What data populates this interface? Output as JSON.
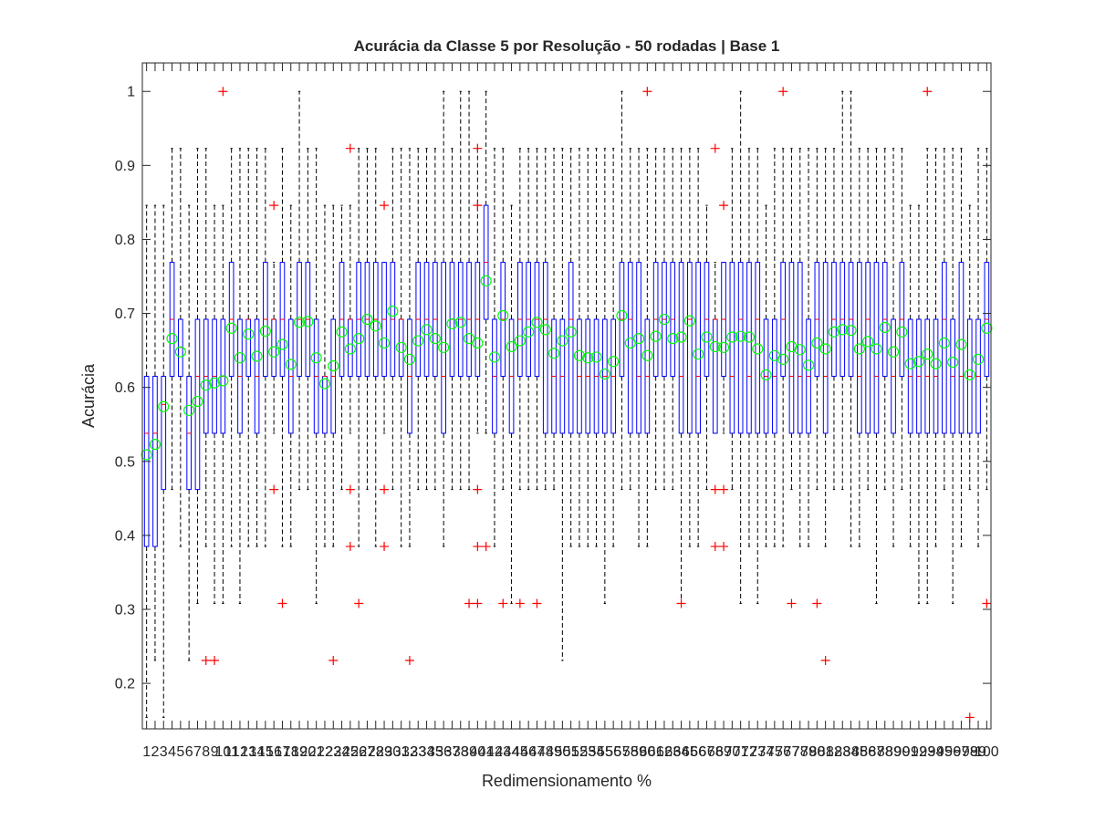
{
  "chart_data": {
    "type": "box",
    "title": "Acurácia da Classe 5 por Resolução - 50 rodadas | Base 1",
    "xlabel": "Redimensionamento %",
    "ylabel": "Acurácia",
    "ylim": [
      0.1385,
      1.0385
    ],
    "yticks": [
      0.2,
      0.3,
      0.4,
      0.5,
      0.6,
      0.7,
      0.8,
      0.9,
      1
    ],
    "categories": [
      "1",
      "2",
      "3",
      "4",
      "5",
      "6",
      "7",
      "8",
      "9",
      "10",
      "11",
      "12",
      "13",
      "14",
      "15",
      "16",
      "17",
      "18",
      "19",
      "20",
      "21",
      "22",
      "23",
      "24",
      "25",
      "26",
      "27",
      "28",
      "29",
      "30",
      "31",
      "32",
      "33",
      "34",
      "35",
      "36",
      "37",
      "38",
      "39",
      "40",
      "41",
      "42",
      "43",
      "44",
      "45",
      "46",
      "47",
      "48",
      "49",
      "50",
      "51",
      "52",
      "53",
      "54",
      "55",
      "56",
      "57",
      "58",
      "59",
      "60",
      "61",
      "62",
      "63",
      "64",
      "65",
      "66",
      "67",
      "68",
      "69",
      "70",
      "71",
      "72",
      "73",
      "74",
      "75",
      "76",
      "77",
      "78",
      "79",
      "80",
      "81",
      "82",
      "83",
      "84",
      "85",
      "86",
      "87",
      "88",
      "89",
      "90",
      "91",
      "92",
      "93",
      "94",
      "95",
      "96",
      "97",
      "98",
      "99",
      "100"
    ],
    "colors": {
      "box": "#0000ff",
      "median": "#ff0000",
      "whisker": "#000000",
      "outlier": "#ff0000",
      "mean": "#00ff00"
    },
    "series": [
      {
        "q1": 0.385,
        "median": 0.538,
        "q3": 0.615,
        "wlo": 0.154,
        "whi": 0.846,
        "mean": 0.509,
        "outliers": []
      },
      {
        "q1": 0.385,
        "median": 0.538,
        "q3": 0.615,
        "wlo": 0.231,
        "whi": 0.846,
        "mean": 0.523,
        "outliers": []
      },
      {
        "q1": 0.462,
        "median": 0.577,
        "q3": 0.615,
        "wlo": 0.154,
        "whi": 0.846,
        "mean": 0.574,
        "outliers": []
      },
      {
        "q1": 0.615,
        "median": 0.692,
        "q3": 0.769,
        "wlo": 0.462,
        "whi": 0.923,
        "mean": 0.666,
        "outliers": []
      },
      {
        "q1": 0.615,
        "median": 0.654,
        "q3": 0.692,
        "wlo": 0.385,
        "whi": 0.923,
        "mean": 0.648,
        "outliers": []
      },
      {
        "q1": 0.462,
        "median": 0.538,
        "q3": 0.615,
        "wlo": 0.231,
        "whi": 0.846,
        "mean": 0.569,
        "outliers": []
      },
      {
        "q1": 0.462,
        "median": 0.615,
        "q3": 0.692,
        "wlo": 0.308,
        "whi": 0.923,
        "mean": 0.581,
        "outliers": []
      },
      {
        "q1": 0.538,
        "median": 0.615,
        "q3": 0.692,
        "wlo": 0.385,
        "whi": 0.923,
        "mean": 0.603,
        "outliers": [
          0.231
        ]
      },
      {
        "q1": 0.538,
        "median": 0.615,
        "q3": 0.692,
        "wlo": 0.308,
        "whi": 0.846,
        "mean": 0.606,
        "outliers": [
          0.231
        ]
      },
      {
        "q1": 0.538,
        "median": 0.615,
        "q3": 0.692,
        "wlo": 0.308,
        "whi": 0.846,
        "mean": 0.609,
        "outliers": [
          1.0
        ]
      },
      {
        "q1": 0.615,
        "median": 0.692,
        "q3": 0.769,
        "wlo": 0.385,
        "whi": 0.923,
        "mean": 0.68,
        "outliers": []
      },
      {
        "q1": 0.538,
        "median": 0.615,
        "q3": 0.692,
        "wlo": 0.308,
        "whi": 0.923,
        "mean": 0.64,
        "outliers": []
      },
      {
        "q1": 0.615,
        "median": 0.692,
        "q3": 0.692,
        "wlo": 0.385,
        "whi": 0.923,
        "mean": 0.672,
        "outliers": []
      },
      {
        "q1": 0.538,
        "median": 0.615,
        "q3": 0.692,
        "wlo": 0.385,
        "whi": 0.923,
        "mean": 0.642,
        "outliers": []
      },
      {
        "q1": 0.615,
        "median": 0.692,
        "q3": 0.769,
        "wlo": 0.385,
        "whi": 0.923,
        "mean": 0.676,
        "outliers": []
      },
      {
        "q1": 0.615,
        "median": 0.692,
        "q3": 0.692,
        "wlo": 0.538,
        "whi": 0.769,
        "mean": 0.648,
        "outliers": [
          0.462,
          0.846
        ]
      },
      {
        "q1": 0.615,
        "median": 0.692,
        "q3": 0.769,
        "wlo": 0.385,
        "whi": 0.923,
        "mean": 0.658,
        "outliers": [
          0.308
        ]
      },
      {
        "q1": 0.538,
        "median": 0.615,
        "q3": 0.692,
        "wlo": 0.385,
        "whi": 0.846,
        "mean": 0.631,
        "outliers": []
      },
      {
        "q1": 0.615,
        "median": 0.692,
        "q3": 0.769,
        "wlo": 0.462,
        "whi": 1.0,
        "mean": 0.688,
        "outliers": []
      },
      {
        "q1": 0.615,
        "median": 0.692,
        "q3": 0.769,
        "wlo": 0.462,
        "whi": 0.923,
        "mean": 0.689,
        "outliers": []
      },
      {
        "q1": 0.538,
        "median": 0.615,
        "q3": 0.692,
        "wlo": 0.308,
        "whi": 0.923,
        "mean": 0.64,
        "outliers": []
      },
      {
        "q1": 0.538,
        "median": 0.615,
        "q3": 0.615,
        "wlo": 0.385,
        "whi": 0.846,
        "mean": 0.605,
        "outliers": []
      },
      {
        "q1": 0.538,
        "median": 0.615,
        "q3": 0.692,
        "wlo": 0.385,
        "whi": 0.846,
        "mean": 0.629,
        "outliers": [
          0.231
        ]
      },
      {
        "q1": 0.615,
        "median": 0.692,
        "q3": 0.769,
        "wlo": 0.462,
        "whi": 0.846,
        "mean": 0.675,
        "outliers": []
      },
      {
        "q1": 0.615,
        "median": 0.692,
        "q3": 0.692,
        "wlo": 0.538,
        "whi": 0.846,
        "mean": 0.652,
        "outliers": [
          0.385,
          0.462,
          0.923
        ]
      },
      {
        "q1": 0.615,
        "median": 0.692,
        "q3": 0.769,
        "wlo": 0.385,
        "whi": 0.923,
        "mean": 0.666,
        "outliers": [
          0.308
        ]
      },
      {
        "q1": 0.615,
        "median": 0.692,
        "q3": 0.769,
        "wlo": 0.462,
        "whi": 0.923,
        "mean": 0.692,
        "outliers": []
      },
      {
        "q1": 0.615,
        "median": 0.692,
        "q3": 0.769,
        "wlo": 0.385,
        "whi": 0.923,
        "mean": 0.683,
        "outliers": []
      },
      {
        "q1": 0.615,
        "median": 0.692,
        "q3": 0.769,
        "wlo": 0.538,
        "whi": 0.769,
        "mean": 0.66,
        "outliers": [
          0.385,
          0.462,
          0.846
        ]
      },
      {
        "q1": 0.615,
        "median": 0.692,
        "q3": 0.769,
        "wlo": 0.462,
        "whi": 0.923,
        "mean": 0.703,
        "outliers": []
      },
      {
        "q1": 0.615,
        "median": 0.692,
        "q3": 0.692,
        "wlo": 0.385,
        "whi": 0.923,
        "mean": 0.654,
        "outliers": []
      },
      {
        "q1": 0.538,
        "median": 0.615,
        "q3": 0.692,
        "wlo": 0.385,
        "whi": 0.923,
        "mean": 0.638,
        "outliers": [
          0.231
        ]
      },
      {
        "q1": 0.615,
        "median": 0.692,
        "q3": 0.769,
        "wlo": 0.462,
        "whi": 0.923,
        "mean": 0.663,
        "outliers": []
      },
      {
        "q1": 0.615,
        "median": 0.692,
        "q3": 0.769,
        "wlo": 0.462,
        "whi": 0.923,
        "mean": 0.678,
        "outliers": []
      },
      {
        "q1": 0.615,
        "median": 0.692,
        "q3": 0.769,
        "wlo": 0.462,
        "whi": 0.923,
        "mean": 0.666,
        "outliers": []
      },
      {
        "q1": 0.538,
        "median": 0.615,
        "q3": 0.769,
        "wlo": 0.385,
        "whi": 1.0,
        "mean": 0.654,
        "outliers": []
      },
      {
        "q1": 0.615,
        "median": 0.692,
        "q3": 0.769,
        "wlo": 0.462,
        "whi": 0.923,
        "mean": 0.686,
        "outliers": []
      },
      {
        "q1": 0.615,
        "median": 0.692,
        "q3": 0.769,
        "wlo": 0.462,
        "whi": 1.0,
        "mean": 0.688,
        "outliers": []
      },
      {
        "q1": 0.615,
        "median": 0.692,
        "q3": 0.769,
        "wlo": 0.462,
        "whi": 1.0,
        "mean": 0.666,
        "outliers": [
          0.308
        ]
      },
      {
        "q1": 0.615,
        "median": 0.692,
        "q3": 0.769,
        "wlo": 0.538,
        "whi": 0.923,
        "mean": 0.66,
        "outliers": [
          0.308,
          0.385,
          0.462,
          0.846,
          0.923
        ]
      },
      {
        "q1": 0.692,
        "median": 0.769,
        "q3": 0.846,
        "wlo": 0.538,
        "whi": 1.0,
        "mean": 0.744,
        "outliers": [
          0.385
        ]
      },
      {
        "q1": 0.538,
        "median": 0.615,
        "q3": 0.692,
        "wlo": 0.385,
        "whi": 0.923,
        "mean": 0.641,
        "outliers": []
      },
      {
        "q1": 0.615,
        "median": 0.692,
        "q3": 0.769,
        "wlo": 0.462,
        "whi": 0.923,
        "mean": 0.697,
        "outliers": [
          0.308
        ]
      },
      {
        "q1": 0.538,
        "median": 0.615,
        "q3": 0.692,
        "wlo": 0.308,
        "whi": 0.846,
        "mean": 0.655,
        "outliers": []
      },
      {
        "q1": 0.615,
        "median": 0.692,
        "q3": 0.769,
        "wlo": 0.462,
        "whi": 0.923,
        "mean": 0.663,
        "outliers": [
          0.308
        ]
      },
      {
        "q1": 0.615,
        "median": 0.692,
        "q3": 0.769,
        "wlo": 0.462,
        "whi": 0.923,
        "mean": 0.675,
        "outliers": []
      },
      {
        "q1": 0.615,
        "median": 0.692,
        "q3": 0.769,
        "wlo": 0.462,
        "whi": 0.923,
        "mean": 0.688,
        "outliers": [
          0.308
        ]
      },
      {
        "q1": 0.538,
        "median": 0.692,
        "q3": 0.769,
        "wlo": 0.462,
        "whi": 0.923,
        "mean": 0.678,
        "outliers": []
      },
      {
        "q1": 0.538,
        "median": 0.615,
        "q3": 0.692,
        "wlo": 0.462,
        "whi": 0.923,
        "mean": 0.646,
        "outliers": []
      },
      {
        "q1": 0.538,
        "median": 0.615,
        "q3": 0.692,
        "wlo": 0.231,
        "whi": 0.923,
        "mean": 0.663,
        "outliers": []
      },
      {
        "q1": 0.538,
        "median": 0.692,
        "q3": 0.769,
        "wlo": 0.385,
        "whi": 0.923,
        "mean": 0.675,
        "outliers": []
      },
      {
        "q1": 0.538,
        "median": 0.615,
        "q3": 0.692,
        "wlo": 0.385,
        "whi": 0.923,
        "mean": 0.643,
        "outliers": []
      },
      {
        "q1": 0.538,
        "median": 0.615,
        "q3": 0.692,
        "wlo": 0.385,
        "whi": 0.923,
        "mean": 0.64,
        "outliers": []
      },
      {
        "q1": 0.538,
        "median": 0.615,
        "q3": 0.692,
        "wlo": 0.385,
        "whi": 0.923,
        "mean": 0.641,
        "outliers": []
      },
      {
        "q1": 0.538,
        "median": 0.615,
        "q3": 0.692,
        "wlo": 0.308,
        "whi": 0.923,
        "mean": 0.618,
        "outliers": []
      },
      {
        "q1": 0.538,
        "median": 0.615,
        "q3": 0.692,
        "wlo": 0.385,
        "whi": 0.923,
        "mean": 0.635,
        "outliers": []
      },
      {
        "q1": 0.615,
        "median": 0.692,
        "q3": 0.769,
        "wlo": 0.462,
        "whi": 1.0,
        "mean": 0.697,
        "outliers": []
      },
      {
        "q1": 0.538,
        "median": 0.692,
        "q3": 0.769,
        "wlo": 0.462,
        "whi": 0.923,
        "mean": 0.66,
        "outliers": []
      },
      {
        "q1": 0.538,
        "median": 0.615,
        "q3": 0.769,
        "wlo": 0.385,
        "whi": 0.923,
        "mean": 0.666,
        "outliers": []
      },
      {
        "q1": 0.538,
        "median": 0.615,
        "q3": 0.692,
        "wlo": 0.385,
        "whi": 0.923,
        "mean": 0.643,
        "outliers": [
          1.0
        ]
      },
      {
        "q1": 0.615,
        "median": 0.692,
        "q3": 0.769,
        "wlo": 0.462,
        "whi": 0.923,
        "mean": 0.669,
        "outliers": []
      },
      {
        "q1": 0.615,
        "median": 0.692,
        "q3": 0.769,
        "wlo": 0.462,
        "whi": 0.923,
        "mean": 0.692,
        "outliers": []
      },
      {
        "q1": 0.615,
        "median": 0.692,
        "q3": 0.769,
        "wlo": 0.462,
        "whi": 0.923,
        "mean": 0.666,
        "outliers": []
      },
      {
        "q1": 0.538,
        "median": 0.615,
        "q3": 0.769,
        "wlo": 0.308,
        "whi": 0.923,
        "mean": 0.668,
        "outliers": [
          0.308
        ]
      },
      {
        "q1": 0.538,
        "median": 0.692,
        "q3": 0.769,
        "wlo": 0.385,
        "whi": 0.923,
        "mean": 0.69,
        "outliers": []
      },
      {
        "q1": 0.538,
        "median": 0.615,
        "q3": 0.769,
        "wlo": 0.385,
        "whi": 0.923,
        "mean": 0.645,
        "outliers": []
      },
      {
        "q1": 0.615,
        "median": 0.692,
        "q3": 0.769,
        "wlo": 0.462,
        "whi": 0.846,
        "mean": 0.668,
        "outliers": []
      },
      {
        "q1": 0.538,
        "median": 0.692,
        "q3": 0.692,
        "wlo": 0.538,
        "whi": 0.769,
        "mean": 0.655,
        "outliers": [
          0.385,
          0.462,
          0.923
        ]
      },
      {
        "q1": 0.615,
        "median": 0.692,
        "q3": 0.769,
        "wlo": 0.538,
        "whi": 0.769,
        "mean": 0.654,
        "outliers": [
          0.385,
          0.462,
          0.846
        ]
      },
      {
        "q1": 0.538,
        "median": 0.615,
        "q3": 0.769,
        "wlo": 0.462,
        "whi": 0.923,
        "mean": 0.668,
        "outliers": []
      },
      {
        "q1": 0.538,
        "median": 0.692,
        "q3": 0.769,
        "wlo": 0.308,
        "whi": 1.0,
        "mean": 0.669,
        "outliers": []
      },
      {
        "q1": 0.538,
        "median": 0.615,
        "q3": 0.769,
        "wlo": 0.385,
        "whi": 0.923,
        "mean": 0.668,
        "outliers": []
      },
      {
        "q1": 0.538,
        "median": 0.692,
        "q3": 0.769,
        "wlo": 0.308,
        "whi": 0.923,
        "mean": 0.652,
        "outliers": []
      },
      {
        "q1": 0.538,
        "median": 0.615,
        "q3": 0.692,
        "wlo": 0.385,
        "whi": 0.846,
        "mean": 0.617,
        "outliers": []
      },
      {
        "q1": 0.538,
        "median": 0.615,
        "q3": 0.692,
        "wlo": 0.385,
        "whi": 0.923,
        "mean": 0.643,
        "outliers": []
      },
      {
        "q1": 0.615,
        "median": 0.692,
        "q3": 0.769,
        "wlo": 0.385,
        "whi": 0.923,
        "mean": 0.638,
        "outliers": [
          1.0
        ]
      },
      {
        "q1": 0.538,
        "median": 0.615,
        "q3": 0.769,
        "wlo": 0.462,
        "whi": 0.923,
        "mean": 0.655,
        "outliers": [
          0.308
        ]
      },
      {
        "q1": 0.538,
        "median": 0.615,
        "q3": 0.769,
        "wlo": 0.385,
        "whi": 0.923,
        "mean": 0.651,
        "outliers": []
      },
      {
        "q1": 0.538,
        "median": 0.615,
        "q3": 0.692,
        "wlo": 0.385,
        "whi": 0.923,
        "mean": 0.63,
        "outliers": []
      },
      {
        "q1": 0.615,
        "median": 0.692,
        "q3": 0.769,
        "wlo": 0.462,
        "whi": 0.923,
        "mean": 0.66,
        "outliers": [
          0.308
        ]
      },
      {
        "q1": 0.538,
        "median": 0.615,
        "q3": 0.769,
        "wlo": 0.385,
        "whi": 0.923,
        "mean": 0.652,
        "outliers": [
          0.231
        ]
      },
      {
        "q1": 0.615,
        "median": 0.692,
        "q3": 0.769,
        "wlo": 0.462,
        "whi": 0.923,
        "mean": 0.675,
        "outliers": []
      },
      {
        "q1": 0.615,
        "median": 0.692,
        "q3": 0.769,
        "wlo": 0.462,
        "whi": 1.0,
        "mean": 0.678,
        "outliers": []
      },
      {
        "q1": 0.615,
        "median": 0.692,
        "q3": 0.769,
        "wlo": 0.385,
        "whi": 1.0,
        "mean": 0.677,
        "outliers": []
      },
      {
        "q1": 0.538,
        "median": 0.615,
        "q3": 0.769,
        "wlo": 0.385,
        "whi": 0.923,
        "mean": 0.652,
        "outliers": []
      },
      {
        "q1": 0.538,
        "median": 0.692,
        "q3": 0.769,
        "wlo": 0.462,
        "whi": 0.923,
        "mean": 0.662,
        "outliers": []
      },
      {
        "q1": 0.538,
        "median": 0.615,
        "q3": 0.769,
        "wlo": 0.308,
        "whi": 0.923,
        "mean": 0.652,
        "outliers": []
      },
      {
        "q1": 0.615,
        "median": 0.692,
        "q3": 0.769,
        "wlo": 0.462,
        "whi": 0.923,
        "mean": 0.681,
        "outliers": []
      },
      {
        "q1": 0.538,
        "median": 0.615,
        "q3": 0.692,
        "wlo": 0.385,
        "whi": 0.923,
        "mean": 0.648,
        "outliers": []
      },
      {
        "q1": 0.615,
        "median": 0.692,
        "q3": 0.769,
        "wlo": 0.462,
        "whi": 0.923,
        "mean": 0.675,
        "outliers": []
      },
      {
        "q1": 0.538,
        "median": 0.615,
        "q3": 0.692,
        "wlo": 0.385,
        "whi": 0.846,
        "mean": 0.632,
        "outliers": []
      },
      {
        "q1": 0.538,
        "median": 0.615,
        "q3": 0.692,
        "wlo": 0.308,
        "whi": 0.846,
        "mean": 0.635,
        "outliers": []
      },
      {
        "q1": 0.538,
        "median": 0.615,
        "q3": 0.692,
        "wlo": 0.308,
        "whi": 0.923,
        "mean": 0.645,
        "outliers": [
          1.0
        ]
      },
      {
        "q1": 0.538,
        "median": 0.615,
        "q3": 0.692,
        "wlo": 0.385,
        "whi": 0.923,
        "mean": 0.632,
        "outliers": []
      },
      {
        "q1": 0.538,
        "median": 0.692,
        "q3": 0.769,
        "wlo": 0.462,
        "whi": 0.923,
        "mean": 0.66,
        "outliers": []
      },
      {
        "q1": 0.538,
        "median": 0.615,
        "q3": 0.692,
        "wlo": 0.308,
        "whi": 0.923,
        "mean": 0.634,
        "outliers": []
      },
      {
        "q1": 0.538,
        "median": 0.615,
        "q3": 0.769,
        "wlo": 0.385,
        "whi": 0.923,
        "mean": 0.658,
        "outliers": []
      },
      {
        "q1": 0.538,
        "median": 0.615,
        "q3": 0.692,
        "wlo": 0.462,
        "whi": 0.846,
        "mean": 0.617,
        "outliers": [
          0.154
        ]
      },
      {
        "q1": 0.538,
        "median": 0.615,
        "q3": 0.692,
        "wlo": 0.385,
        "whi": 0.923,
        "mean": 0.638,
        "outliers": []
      },
      {
        "q1": 0.615,
        "median": 0.692,
        "q3": 0.769,
        "wlo": 0.462,
        "whi": 0.923,
        "mean": 0.68,
        "outliers": [
          0.308
        ]
      }
    ]
  }
}
